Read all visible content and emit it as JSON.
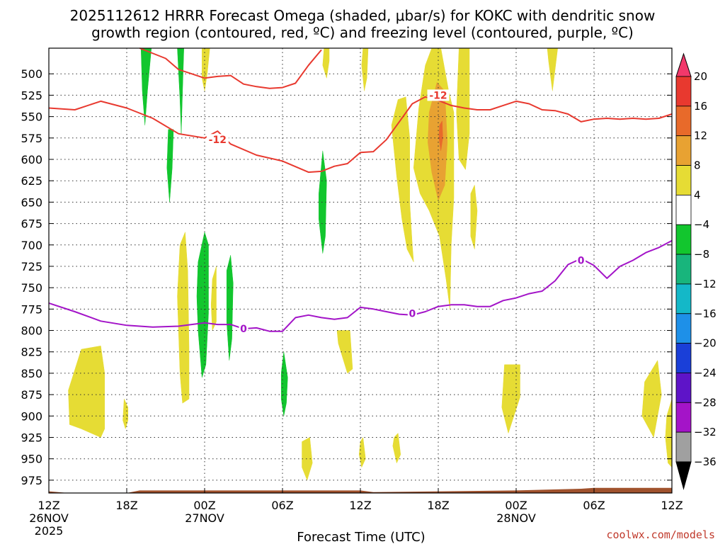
{
  "title_line1": "2025112612 HRRR Forecast Omega (shaded, μbar/s) for KOKC with dendritic snow",
  "title_line2": "growth region (contoured, red, ºC) and freezing level (contoured, purple, ºC)",
  "credit": "coolwx.com/models",
  "chart_data": {
    "type": "time-height cross section",
    "title": "2025112612 HRRR Forecast Omega (shaded, μbar/s) for KOKC with dendritic snow growth region (contoured, red, ºC) and freezing level (contoured, purple, ºC)",
    "xlabel": "Forecast Time (UTC)",
    "ylabel": "",
    "xlim": [
      0,
      48
    ],
    "ylim": [
      990,
      470
    ],
    "grid": true,
    "x_ticks": [
      {
        "hour": 0,
        "label": "12Z",
        "sub1": "26NOV",
        "sub2": "2025"
      },
      {
        "hour": 6,
        "label": "18Z",
        "sub1": "",
        "sub2": ""
      },
      {
        "hour": 12,
        "label": "00Z",
        "sub1": "27NOV",
        "sub2": ""
      },
      {
        "hour": 18,
        "label": "06Z",
        "sub1": "",
        "sub2": ""
      },
      {
        "hour": 24,
        "label": "12Z",
        "sub1": "",
        "sub2": ""
      },
      {
        "hour": 30,
        "label": "18Z",
        "sub1": "",
        "sub2": ""
      },
      {
        "hour": 36,
        "label": "00Z",
        "sub1": "28NOV",
        "sub2": ""
      },
      {
        "hour": 42,
        "label": "06Z",
        "sub1": "",
        "sub2": ""
      },
      {
        "hour": 48,
        "label": "12Z",
        "sub1": "",
        "sub2": ""
      }
    ],
    "y_ticks": [
      500,
      525,
      550,
      575,
      600,
      625,
      650,
      675,
      700,
      725,
      750,
      775,
      800,
      825,
      850,
      875,
      900,
      925,
      950,
      975
    ],
    "colorbar": {
      "labels": [
        "20",
        "16",
        "12",
        "8",
        "4",
        "−4",
        "−8",
        "−12",
        "−16",
        "−20",
        "−24",
        "−28",
        "−32",
        "−36"
      ],
      "colors": [
        "#f2386b",
        "#e8392f",
        "#e86a2a",
        "#e8a232",
        "#e6dc34",
        "#ffffff",
        "#12c62e",
        "#18b57c",
        "#14b8c8",
        "#1e90e8",
        "#1a3fd8",
        "#5e14c8",
        "#a414c8",
        "#a0a0a0",
        "#000000"
      ]
    },
    "series": [
      {
        "name": "-12",
        "color": "#e8392f",
        "x": [
          0,
          2,
          4,
          6,
          8,
          10,
          12,
          13,
          14,
          16,
          18,
          20,
          21,
          22,
          23,
          24,
          25,
          26,
          27,
          28,
          29,
          30,
          31,
          32,
          33,
          34,
          35,
          36,
          37,
          38,
          39,
          40,
          41,
          42,
          43,
          44,
          45,
          46,
          47,
          48
        ],
        "y": [
          540,
          542,
          532,
          540,
          552,
          570,
          575,
          567,
          582,
          595,
          602,
          615,
          614,
          608,
          605,
          592,
          591,
          577,
          556,
          535,
          527,
          531,
          537,
          540,
          542,
          542,
          537,
          532,
          535,
          542,
          543,
          547,
          556,
          553,
          552,
          553,
          552,
          553,
          552,
          547
        ]
      },
      {
        "name": "-12",
        "color": "#e8392f",
        "x": [
          7,
          9,
          10,
          11,
          12,
          13,
          14,
          15,
          16,
          17,
          18,
          19,
          20,
          21
        ],
        "y": [
          470,
          482,
          495,
          500,
          505,
          503,
          502,
          512,
          515,
          517,
          516,
          511,
          490,
          472
        ]
      },
      {
        "name": "0",
        "color": "#a314c8",
        "x": [
          0,
          2,
          4,
          6,
          8,
          10,
          11,
          12,
          13,
          14,
          15,
          16,
          17,
          18,
          19,
          20,
          21,
          22,
          23,
          24,
          25,
          26,
          27,
          28,
          29,
          30,
          31,
          32,
          33,
          34,
          35,
          36,
          37,
          38,
          39,
          40,
          41,
          42,
          43,
          44,
          45,
          46,
          47,
          48
        ],
        "y": [
          768,
          778,
          789,
          794,
          796,
          795,
          793,
          791,
          793,
          793,
          798,
          797,
          801,
          801,
          785,
          782,
          785,
          787,
          785,
          773,
          775,
          778,
          781,
          782,
          778,
          772,
          770,
          770,
          772,
          772,
          765,
          762,
          757,
          754,
          742,
          723,
          716,
          724,
          739,
          725,
          718,
          709,
          703,
          695
        ]
      }
    ],
    "contour_labels": [
      {
        "text": "-12",
        "hour": 30,
        "p": 525,
        "color": "#e8392f"
      },
      {
        "text": "-12",
        "hour": 13,
        "p": 577,
        "color": "#e8392f"
      },
      {
        "text": "0",
        "hour": 15,
        "p": 798,
        "color": "#a314c8"
      },
      {
        "text": "0",
        "hour": 28,
        "p": 780,
        "color": "#a314c8"
      },
      {
        "text": "0",
        "hour": 41,
        "p": 718,
        "color": "#a314c8"
      }
    ],
    "shaded_regions": [
      {
        "color": "#e6dc34",
        "points": [
          [
            1.5,
            870
          ],
          [
            2.5,
            822
          ],
          [
            4,
            818
          ],
          [
            4.3,
            850
          ],
          [
            4.3,
            915
          ],
          [
            4,
            925
          ],
          [
            2.5,
            915
          ],
          [
            1.6,
            910
          ]
        ]
      },
      {
        "color": "#e6dc34",
        "points": [
          [
            5.8,
            880
          ],
          [
            6.1,
            890
          ],
          [
            6.1,
            905
          ],
          [
            5.9,
            915
          ],
          [
            5.7,
            905
          ]
        ]
      },
      {
        "color": "#e6dc34",
        "points": [
          [
            11.8,
            470
          ],
          [
            12.4,
            470
          ],
          [
            12.2,
            500
          ],
          [
            12,
            520
          ],
          [
            11.8,
            505
          ]
        ]
      },
      {
        "color": "#e6dc34",
        "points": [
          [
            10.1,
            700
          ],
          [
            10.5,
            685
          ],
          [
            10.7,
            730
          ],
          [
            10.8,
            820
          ],
          [
            10.8,
            880
          ],
          [
            10.3,
            885
          ],
          [
            10.1,
            850
          ],
          [
            9.9,
            760
          ]
        ]
      },
      {
        "color": "#e6dc34",
        "points": [
          [
            12.6,
            740
          ],
          [
            12.9,
            725
          ],
          [
            12.9,
            790
          ],
          [
            12.6,
            800
          ],
          [
            12.5,
            770
          ]
        ]
      },
      {
        "color": "#e6dc34",
        "points": [
          [
            21.2,
            470
          ],
          [
            21.6,
            470
          ],
          [
            21.6,
            485
          ],
          [
            21.4,
            505
          ],
          [
            21.1,
            490
          ]
        ]
      },
      {
        "color": "#e6dc34",
        "points": [
          [
            24.2,
            470
          ],
          [
            24.6,
            470
          ],
          [
            24.5,
            505
          ],
          [
            24.3,
            520
          ],
          [
            24.1,
            490
          ]
        ]
      },
      {
        "color": "#e6dc34",
        "points": [
          [
            22.2,
            800
          ],
          [
            23.2,
            800
          ],
          [
            23.4,
            845
          ],
          [
            23,
            850
          ],
          [
            22.6,
            830
          ],
          [
            22.3,
            815
          ]
        ]
      },
      {
        "color": "#e6dc34",
        "points": [
          [
            19.5,
            930
          ],
          [
            20.1,
            925
          ],
          [
            20.3,
            955
          ],
          [
            19.9,
            975
          ],
          [
            19.5,
            960
          ]
        ]
      },
      {
        "color": "#e6dc34",
        "points": [
          [
            24,
            930
          ],
          [
            24.2,
            925
          ],
          [
            24.4,
            950
          ],
          [
            24.1,
            960
          ],
          [
            23.9,
            945
          ]
        ]
      },
      {
        "color": "#e6dc34",
        "points": [
          [
            26.6,
            925
          ],
          [
            26.9,
            920
          ],
          [
            27.1,
            945
          ],
          [
            26.8,
            955
          ],
          [
            26.5,
            935
          ]
        ]
      },
      {
        "color": "#e6dc34",
        "points": [
          [
            26.4,
            560
          ],
          [
            26.9,
            530
          ],
          [
            27.5,
            527
          ],
          [
            27.8,
            575
          ],
          [
            27.8,
            650
          ],
          [
            28,
            700
          ],
          [
            28.1,
            720
          ],
          [
            27.6,
            705
          ],
          [
            27.2,
            670
          ],
          [
            26.8,
            620
          ]
        ]
      },
      {
        "color": "#e6dc34",
        "points": [
          [
            28.1,
            610
          ],
          [
            28.5,
            540
          ],
          [
            29,
            490
          ],
          [
            29.5,
            470
          ],
          [
            30.2,
            470
          ],
          [
            30.8,
            520
          ],
          [
            31.2,
            545
          ],
          [
            31.2,
            580
          ],
          [
            31.2,
            645
          ],
          [
            31,
            700
          ],
          [
            30.9,
            775
          ],
          [
            30.6,
            740
          ],
          [
            30.1,
            690
          ],
          [
            29.3,
            660
          ],
          [
            28.6,
            640
          ]
        ]
      },
      {
        "color": "#e6dc34",
        "points": [
          [
            31.6,
            470
          ],
          [
            32.4,
            470
          ],
          [
            32.4,
            520
          ],
          [
            32.4,
            570
          ],
          [
            32.1,
            612
          ],
          [
            31.6,
            600
          ],
          [
            31.4,
            545
          ]
        ]
      },
      {
        "color": "#e6dc34",
        "points": [
          [
            32.5,
            640
          ],
          [
            32.8,
            630
          ],
          [
            33,
            660
          ],
          [
            32.8,
            705
          ],
          [
            32.5,
            690
          ]
        ]
      },
      {
        "color": "#e6dc34",
        "points": [
          [
            35.1,
            840
          ],
          [
            36.3,
            840
          ],
          [
            36.3,
            878
          ],
          [
            35.4,
            920
          ],
          [
            34.9,
            890
          ]
        ]
      },
      {
        "color": "#e6dc34",
        "points": [
          [
            38.4,
            470
          ],
          [
            39.2,
            470
          ],
          [
            38.8,
            520
          ],
          [
            38.5,
            485
          ]
        ]
      },
      {
        "color": "#e6dc34",
        "points": [
          [
            45.9,
            860
          ],
          [
            46.9,
            835
          ],
          [
            47.2,
            875
          ],
          [
            46.6,
            925
          ],
          [
            45.7,
            900
          ]
        ]
      },
      {
        "color": "#e6dc34",
        "points": [
          [
            47.6,
            900
          ],
          [
            48,
            880
          ],
          [
            48,
            960
          ],
          [
            47.7,
            955
          ],
          [
            47.5,
            925
          ]
        ]
      },
      {
        "color": "#e8a232",
        "points": [
          [
            29.3,
            545
          ],
          [
            29.9,
            510
          ],
          [
            30.5,
            520
          ],
          [
            30.7,
            580
          ],
          [
            30.5,
            630
          ],
          [
            30,
            648
          ],
          [
            29.5,
            615
          ],
          [
            29.2,
            580
          ]
        ]
      },
      {
        "color": "#e86a2a",
        "points": [
          [
            30.1,
            560
          ],
          [
            30.3,
            555
          ],
          [
            30.35,
            575
          ],
          [
            30.2,
            590
          ],
          [
            30.05,
            575
          ]
        ]
      },
      {
        "color": "#12c62e",
        "points": [
          [
            7.1,
            470
          ],
          [
            7.9,
            470
          ],
          [
            7.6,
            520
          ],
          [
            7.4,
            560
          ],
          [
            7.2,
            520
          ]
        ]
      },
      {
        "color": "#12c62e",
        "points": [
          [
            9.2,
            565
          ],
          [
            9.6,
            565
          ],
          [
            9.5,
            610
          ],
          [
            9.3,
            650
          ],
          [
            9.1,
            610
          ]
        ]
      },
      {
        "color": "#12c62e",
        "points": [
          [
            9.9,
            470
          ],
          [
            10.4,
            470
          ],
          [
            10.3,
            520
          ],
          [
            10.2,
            570
          ],
          [
            10.1,
            530
          ]
        ]
      },
      {
        "color": "#12c62e",
        "points": [
          [
            11.5,
            720
          ],
          [
            12,
            685
          ],
          [
            12.3,
            700
          ],
          [
            12.3,
            780
          ],
          [
            12.1,
            840
          ],
          [
            11.8,
            855
          ],
          [
            11.5,
            800
          ],
          [
            11.4,
            760
          ]
        ]
      },
      {
        "color": "#12c62e",
        "points": [
          [
            13.7,
            730
          ],
          [
            14,
            712
          ],
          [
            14.2,
            745
          ],
          [
            14.1,
            810
          ],
          [
            13.9,
            835
          ],
          [
            13.7,
            790
          ]
        ]
      },
      {
        "color": "#12c62e",
        "points": [
          [
            17.9,
            850
          ],
          [
            18.1,
            825
          ],
          [
            18.4,
            855
          ],
          [
            18.3,
            885
          ],
          [
            18.1,
            900
          ],
          [
            17.9,
            880
          ]
        ]
      },
      {
        "color": "#12c62e",
        "points": [
          [
            20.8,
            640
          ],
          [
            21.1,
            590
          ],
          [
            21.4,
            625
          ],
          [
            21.3,
            690
          ],
          [
            21.1,
            710
          ],
          [
            20.8,
            670
          ]
        ]
      }
    ],
    "terrain": {
      "color": "#a0522d",
      "x": [
        0,
        1.5,
        6,
        7,
        24,
        25,
        36,
        41,
        42,
        48
      ],
      "top": [
        988,
        990,
        990,
        987,
        987,
        989,
        987,
        985,
        984,
        984
      ]
    }
  }
}
